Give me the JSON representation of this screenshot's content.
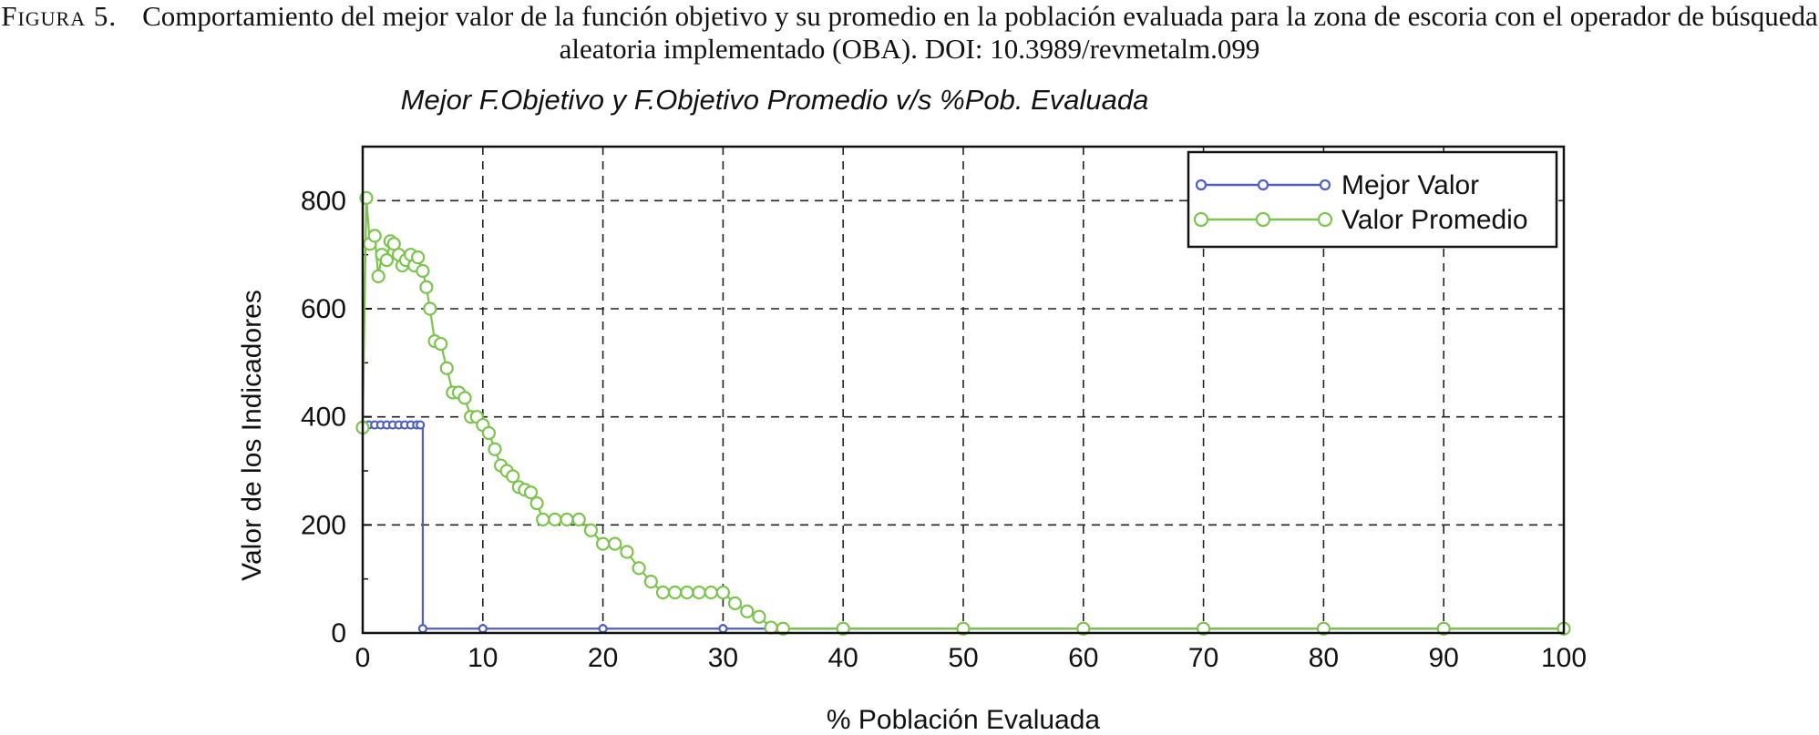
{
  "caption": {
    "label": "Figura 5.",
    "text": "Comportamiento del mejor valor de la función objetivo y su promedio en la población evaluada para la zona de escoria con el operador de búsqueda aleatoria implementado (OBA). DOI: 10.3989/revmetalm.099"
  },
  "colors": {
    "mejor": "#4f5fbd",
    "promedio": "#7cc44e"
  },
  "chart_data": {
    "type": "line",
    "title": "Mejor F.Objetivo y F.Objetivo Promedio v/s %Pob. Evaluada",
    "xlabel": "% Población Evaluada",
    "ylabel": "Valor de los Indicadores",
    "xlim": [
      0,
      100
    ],
    "ylim": [
      0,
      900
    ],
    "xticks": [
      0,
      10,
      20,
      30,
      40,
      50,
      60,
      70,
      80,
      90,
      100
    ],
    "yticks": [
      0,
      200,
      400,
      600,
      800
    ],
    "grid": true,
    "legend": "top-right",
    "series": [
      {
        "name": "Mejor Valor",
        "x": [
          0,
          0.5,
          1,
          1.5,
          2,
          2.5,
          3,
          3.5,
          4,
          4.5,
          4.8,
          5,
          10,
          20,
          30,
          40,
          50,
          60,
          70,
          80,
          90,
          100
        ],
        "y": [
          385,
          385,
          385,
          385,
          385,
          385,
          385,
          385,
          385,
          385,
          385,
          8,
          8,
          8,
          8,
          8,
          8,
          8,
          8,
          8,
          8,
          8
        ]
      },
      {
        "name": "Valor Promedio",
        "x": [
          0,
          0.3,
          0.6,
          1,
          1.3,
          1.6,
          2,
          2.3,
          2.6,
          3,
          3.3,
          3.6,
          4,
          4.3,
          4.6,
          5,
          5.3,
          5.6,
          6,
          6.5,
          7,
          7.5,
          8,
          8.5,
          9,
          9.5,
          10,
          10.5,
          11,
          11.5,
          12,
          12.5,
          13,
          13.5,
          14,
          14.5,
          15,
          16,
          17,
          18,
          19,
          20,
          21,
          22,
          23,
          24,
          25,
          26,
          27,
          28,
          29,
          30,
          31,
          32,
          33,
          34,
          35,
          40,
          50,
          60,
          70,
          80,
          90,
          100
        ],
        "y": [
          380,
          805,
          720,
          735,
          660,
          700,
          690,
          725,
          720,
          700,
          680,
          690,
          700,
          680,
          695,
          670,
          640,
          600,
          540,
          535,
          490,
          445,
          445,
          435,
          400,
          400,
          385,
          370,
          340,
          310,
          300,
          290,
          270,
          265,
          260,
          240,
          210,
          210,
          210,
          210,
          190,
          165,
          165,
          150,
          120,
          95,
          75,
          75,
          75,
          75,
          75,
          75,
          55,
          40,
          30,
          10,
          8,
          8,
          8,
          8,
          8,
          8,
          8,
          8
        ]
      }
    ]
  }
}
